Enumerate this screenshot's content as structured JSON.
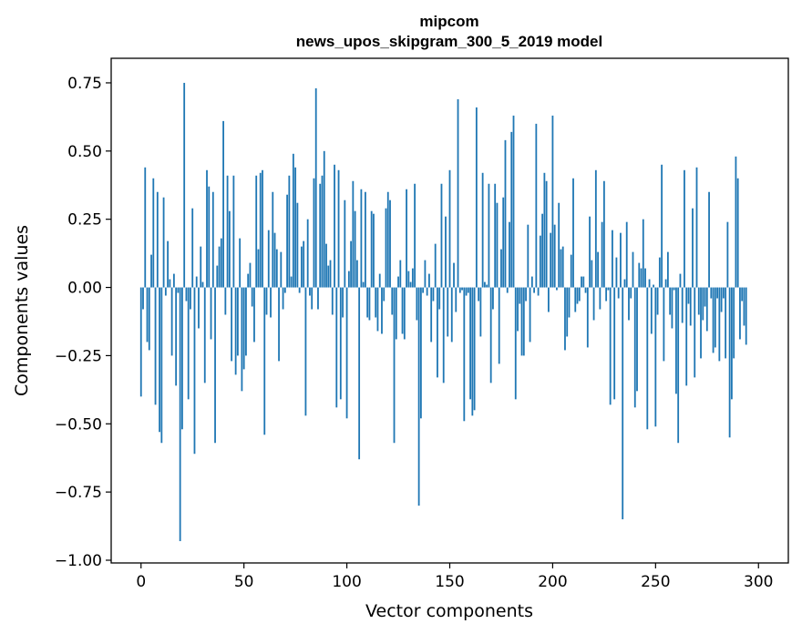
{
  "chart_data": {
    "type": "bar",
    "title": "mipcom",
    "subtitle": "news_upos_skipgram_300_5_2019 model",
    "xlabel": "Vector components",
    "ylabel": "Components values",
    "xlim": [
      -14.5,
      314.5
    ],
    "ylim": [
      -1.01,
      0.84
    ],
    "xticks": [
      0,
      50,
      100,
      150,
      200,
      250,
      300
    ],
    "xtick_labels": [
      "0",
      "50",
      "100",
      "150",
      "200",
      "250",
      "300"
    ],
    "yticks": [
      -1.0,
      -0.75,
      -0.5,
      -0.25,
      0.0,
      0.25,
      0.5,
      0.75
    ],
    "ytick_labels": [
      "−1.00",
      "−0.75",
      "−0.50",
      "−0.25",
      "0.00",
      "0.25",
      "0.50",
      "0.75"
    ],
    "bar_color": "#1f77b4",
    "grid": false,
    "values": [
      -0.4,
      -0.08,
      0.44,
      -0.2,
      -0.23,
      0.12,
      0.4,
      -0.43,
      0.35,
      -0.53,
      -0.57,
      0.33,
      -0.03,
      0.17,
      0.03,
      -0.25,
      0.05,
      -0.36,
      -0.02,
      -0.93,
      -0.52,
      0.75,
      -0.05,
      -0.41,
      -0.08,
      0.29,
      -0.61,
      0.04,
      -0.15,
      0.15,
      0.02,
      -0.35,
      0.43,
      0.37,
      -0.19,
      0.35,
      -0.57,
      0.08,
      0.15,
      0.18,
      0.61,
      -0.1,
      0.41,
      0.28,
      -0.27,
      0.41,
      -0.32,
      -0.25,
      0.18,
      -0.38,
      -0.3,
      -0.25,
      0.05,
      0.09,
      -0.07,
      -0.2,
      0.41,
      0.14,
      0.42,
      0.43,
      -0.54,
      -0.1,
      0.21,
      -0.11,
      0.35,
      0.2,
      0.14,
      -0.27,
      0.13,
      -0.08,
      -0.02,
      0.34,
      0.41,
      0.04,
      0.49,
      0.44,
      0.31,
      -0.02,
      0.15,
      0.17,
      -0.47,
      0.25,
      -0.03,
      -0.08,
      0.4,
      0.73,
      -0.08,
      0.38,
      0.41,
      0.5,
      0.16,
      0.08,
      0.1,
      -0.1,
      0.45,
      -0.44,
      0.43,
      -0.41,
      -0.11,
      0.32,
      -0.48,
      0.06,
      0.17,
      0.39,
      0.28,
      0.1,
      -0.63,
      0.36,
      0.02,
      0.35,
      -0.11,
      -0.12,
      0.28,
      0.27,
      -0.11,
      -0.16,
      0.05,
      -0.17,
      -0.05,
      0.29,
      0.35,
      0.32,
      -0.1,
      -0.57,
      -0.19,
      0.04,
      0.1,
      -0.17,
      -0.19,
      0.36,
      0.06,
      0.02,
      0.07,
      0.38,
      -0.12,
      -0.8,
      -0.48,
      -0.02,
      0.1,
      -0.03,
      0.05,
      -0.2,
      -0.05,
      0.16,
      -0.33,
      -0.08,
      0.38,
      -0.35,
      0.26,
      -0.18,
      0.43,
      -0.2,
      0.09,
      -0.09,
      0.69,
      -0.02,
      -0.01,
      -0.49,
      -0.03,
      -0.02,
      -0.41,
      -0.47,
      -0.45,
      0.66,
      -0.05,
      -0.18,
      0.42,
      0.02,
      0.01,
      0.38,
      -0.35,
      -0.08,
      0.38,
      0.31,
      -0.28,
      0.14,
      0.33,
      0.54,
      -0.02,
      0.24,
      0.57,
      0.63,
      -0.41,
      -0.16,
      -0.06,
      -0.25,
      -0.25,
      -0.05,
      0.23,
      -0.2,
      0.04,
      -0.02,
      0.6,
      -0.03,
      0.19,
      0.27,
      0.42,
      0.39,
      -0.09,
      0.2,
      0.63,
      0.23,
      -0.01,
      0.31,
      0.14,
      0.15,
      -0.23,
      -0.18,
      -0.11,
      0.12,
      0.4,
      -0.09,
      -0.06,
      -0.05,
      0.04,
      0.04,
      -0.02,
      -0.22,
      0.26,
      0.1,
      -0.12,
      0.43,
      0.13,
      -0.08,
      0.24,
      0.39,
      -0.05,
      -0.01,
      -0.43,
      0.21,
      -0.41,
      0.11,
      -0.04,
      0.2,
      -0.85,
      0.03,
      0.24,
      -0.12,
      -0.04,
      0.13,
      -0.44,
      -0.38,
      0.09,
      0.07,
      0.25,
      0.07,
      -0.52,
      0.03,
      -0.17,
      0.01,
      -0.51,
      -0.1,
      0.11,
      0.45,
      -0.27,
      0.03,
      0.13,
      -0.1,
      -0.15,
      -0.01,
      -0.39,
      -0.57,
      0.05,
      -0.13,
      0.43,
      -0.36,
      -0.06,
      -0.14,
      0.29,
      -0.33,
      0.44,
      -0.1,
      -0.26,
      -0.12,
      -0.07,
      -0.16,
      0.35,
      -0.04,
      -0.24,
      -0.22,
      -0.04,
      -0.27,
      -0.09,
      -0.04,
      -0.26,
      0.24,
      -0.55,
      -0.41,
      -0.26,
      0.48,
      0.4,
      -0.19,
      -0.05,
      -0.14,
      -0.21
    ]
  }
}
